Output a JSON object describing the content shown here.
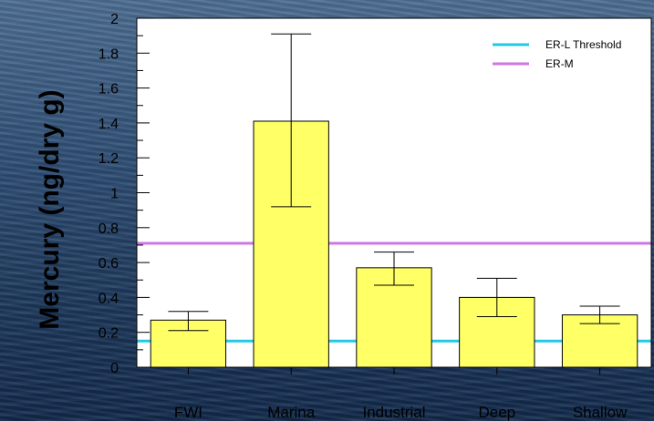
{
  "chart_data": {
    "type": "bar",
    "title": "",
    "xlabel": "",
    "ylabel": "Mercury (ng/dry g)",
    "ylim": [
      0,
      2
    ],
    "yticks": [
      "0",
      "0.2",
      "0.4",
      "0.6",
      "0.8",
      "1",
      "1.2",
      "1.4",
      "1.6",
      "1.8",
      "2"
    ],
    "categories": [
      "FWI",
      "Marina",
      "Industrial",
      "Deep",
      "Shallow"
    ],
    "values": [
      0.27,
      1.41,
      0.57,
      0.4,
      0.3
    ],
    "error_low": [
      0.21,
      0.92,
      0.47,
      0.29,
      0.25
    ],
    "error_high": [
      0.32,
      1.91,
      0.66,
      0.51,
      0.35
    ],
    "bar_color": "#ffff66",
    "grid": false,
    "legend_position": "top-right",
    "reference_lines": [
      {
        "label": "ER-L Threshold",
        "value": 0.15,
        "color": "#22c8e6"
      },
      {
        "label": "ER-M",
        "value": 0.71,
        "color": "#cc77e6"
      }
    ]
  }
}
